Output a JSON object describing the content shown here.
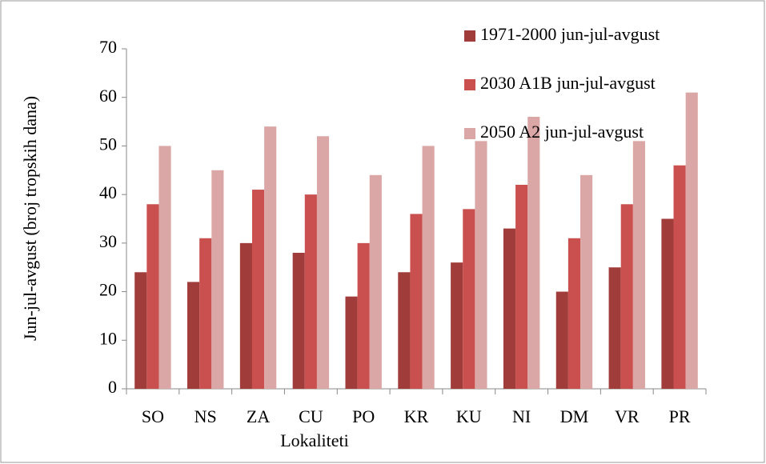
{
  "chart_data": {
    "type": "bar",
    "ylabel": "Jun-jul-avgust (broj tropskih dana)",
    "xlabel": "Lokaliteti",
    "categories": [
      "SO",
      "NS",
      "ZA",
      "CU",
      "PO",
      "KR",
      "KU",
      "NI",
      "DM",
      "VR",
      "PR"
    ],
    "series": [
      {
        "name": "1971-2000 jun-jul-avgust",
        "color": "#a03c3a",
        "values": [
          24,
          22,
          30,
          28,
          19,
          24,
          26,
          33,
          20,
          25,
          35
        ]
      },
      {
        "name": "2030 A1B jun-jul-avgust",
        "color": "#c9504e",
        "values": [
          38,
          31,
          41,
          40,
          30,
          36,
          37,
          42,
          31,
          38,
          46
        ]
      },
      {
        "name": "2050 A2 jun-jul-avgust",
        "color": "#dba7a6",
        "values": [
          50,
          45,
          54,
          52,
          44,
          50,
          51,
          56,
          44,
          51,
          61
        ]
      }
    ],
    "ylim": [
      0,
      70
    ],
    "yticks": [
      0,
      10,
      20,
      30,
      40,
      50,
      60,
      70
    ],
    "legend": "top-right"
  }
}
